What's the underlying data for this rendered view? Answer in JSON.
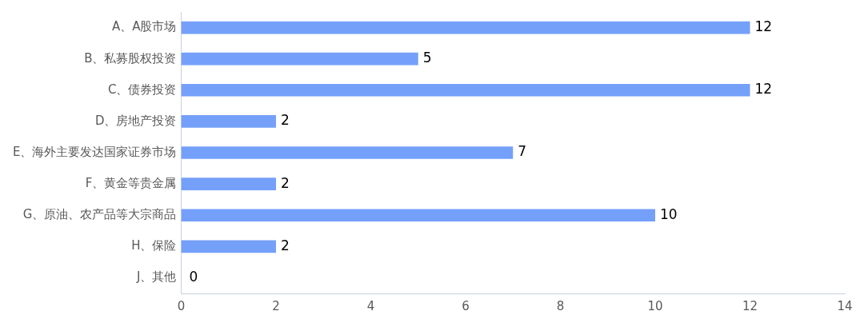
{
  "chart_data": {
    "type": "bar",
    "orientation": "horizontal",
    "categories": [
      "A、A股市场",
      "B、私募股权投资",
      "C、债券投资",
      "D、房地产投资",
      "E、海外主要发达国家证券市场",
      "F、黄金等贵金属",
      "G、原油、农产品等大宗商品",
      "H、保险",
      "J、其他"
    ],
    "values": [
      12,
      5,
      12,
      2,
      7,
      2,
      10,
      2,
      0
    ],
    "color": "#74a0fa",
    "xlim": [
      0,
      14
    ],
    "xticks": [
      0,
      2,
      4,
      6,
      8,
      10,
      12,
      14
    ],
    "grid": false,
    "legend": false,
    "data_labels": true
  }
}
